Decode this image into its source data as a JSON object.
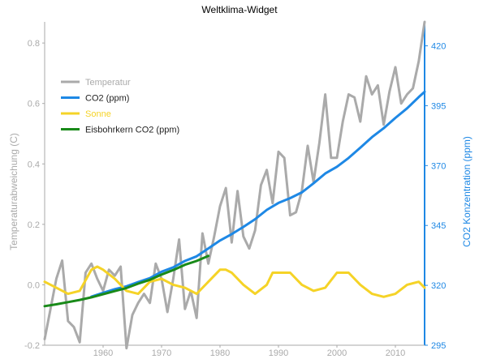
{
  "chart_data": {
    "type": "line",
    "title": "Weltklima-Widget",
    "xlabel": "",
    "ylabel_left": "Temperaturabweichung (C)",
    "ylabel_right": "CO2 Konzentration (ppm)",
    "xlim": [
      1950,
      2015
    ],
    "ylim_left": [
      -0.2,
      0.87
    ],
    "ylim_right": [
      295,
      430
    ],
    "x_ticks": [
      1960,
      1970,
      1980,
      1990,
      2000,
      2010
    ],
    "y_ticks_left": [
      -0.2,
      0.0,
      0.2,
      0.4,
      0.6,
      0.8
    ],
    "y_ticks_right": [
      295,
      320,
      345,
      370,
      395,
      420
    ],
    "legend_position": "top-left",
    "grid": false,
    "colors": {
      "temperature": "#aaaaaa",
      "co2": "#1e88e5",
      "sun": "#f5d327",
      "icecore": "#198a19",
      "left_axis": "#aaaaaa",
      "right_axis": "#1e88e5"
    },
    "series": [
      {
        "name": "Temperatur",
        "axis": "left",
        "x": [
          1950,
          1951,
          1952,
          1953,
          1954,
          1955,
          1956,
          1957,
          1958,
          1959,
          1960,
          1961,
          1962,
          1963,
          1964,
          1965,
          1966,
          1967,
          1968,
          1969,
          1970,
          1971,
          1972,
          1973,
          1974,
          1975,
          1976,
          1977,
          1978,
          1979,
          1980,
          1981,
          1982,
          1983,
          1984,
          1985,
          1986,
          1987,
          1988,
          1989,
          1990,
          1991,
          1992,
          1993,
          1994,
          1995,
          1996,
          1997,
          1998,
          1999,
          2000,
          2001,
          2002,
          2003,
          2004,
          2005,
          2006,
          2007,
          2008,
          2009,
          2010,
          2011,
          2012,
          2013,
          2014,
          2015
        ],
        "values": [
          -0.18,
          -0.08,
          0.02,
          0.08,
          -0.12,
          -0.14,
          -0.19,
          0.04,
          0.07,
          0.02,
          -0.02,
          0.05,
          0.03,
          0.06,
          -0.21,
          -0.1,
          -0.06,
          -0.03,
          -0.06,
          0.07,
          0.02,
          -0.09,
          0.02,
          0.15,
          -0.08,
          -0.02,
          -0.11,
          0.17,
          0.07,
          0.16,
          0.26,
          0.32,
          0.14,
          0.31,
          0.16,
          0.12,
          0.18,
          0.33,
          0.38,
          0.27,
          0.44,
          0.42,
          0.23,
          0.24,
          0.31,
          0.46,
          0.34,
          0.47,
          0.63,
          0.42,
          0.42,
          0.54,
          0.63,
          0.62,
          0.54,
          0.69,
          0.63,
          0.66,
          0.53,
          0.64,
          0.72,
          0.6,
          0.63,
          0.65,
          0.74,
          0.87
        ]
      },
      {
        "name": "CO2 (ppm)",
        "axis": "right",
        "x": [
          1958,
          1960,
          1962,
          1964,
          1966,
          1968,
          1970,
          1972,
          1974,
          1976,
          1978,
          1980,
          1982,
          1984,
          1986,
          1988,
          1990,
          1992,
          1994,
          1996,
          1998,
          2000,
          2002,
          2004,
          2006,
          2008,
          2010,
          2012,
          2014,
          2015
        ],
        "values": [
          315.3,
          316.9,
          318.4,
          319.6,
          321.4,
          323.0,
          325.7,
          327.5,
          330.2,
          332.1,
          335.4,
          338.7,
          341.4,
          344.4,
          347.6,
          351.5,
          354.4,
          356.4,
          358.8,
          362.6,
          366.7,
          369.5,
          373.2,
          377.5,
          381.9,
          385.6,
          389.9,
          393.9,
          398.6,
          400.8
        ]
      },
      {
        "name": "Sonne",
        "axis": "left",
        "x": [
          1950,
          1952,
          1954,
          1956,
          1958,
          1959,
          1960,
          1962,
          1964,
          1966,
          1968,
          1970,
          1972,
          1974,
          1976,
          1978,
          1980,
          1981,
          1982,
          1984,
          1986,
          1988,
          1989,
          1990,
          1992,
          1994,
          1996,
          1998,
          2000,
          2001,
          2002,
          2004,
          2006,
          2008,
          2010,
          2012,
          2014,
          2015
        ],
        "values": [
          0.01,
          -0.01,
          -0.03,
          -0.02,
          0.05,
          0.06,
          0.05,
          0.02,
          -0.02,
          -0.03,
          0.01,
          0.02,
          0.0,
          -0.01,
          -0.03,
          0.01,
          0.05,
          0.05,
          0.04,
          0.0,
          -0.03,
          0.0,
          0.04,
          0.04,
          0.04,
          0.0,
          -0.02,
          -0.01,
          0.04,
          0.04,
          0.04,
          0.0,
          -0.03,
          -0.04,
          -0.03,
          0.0,
          0.01,
          -0.01
        ]
      },
      {
        "name": "Eisbohrkern CO2 (ppm)",
        "axis": "right",
        "x": [
          1950,
          1952,
          1954,
          1956,
          1958,
          1960,
          1962,
          1964,
          1966,
          1968,
          1970,
          1972,
          1974,
          1976,
          1978
        ],
        "values": [
          311.3,
          312.1,
          313.0,
          313.9,
          315.0,
          316.3,
          317.6,
          318.9,
          320.7,
          322.3,
          324.5,
          326.4,
          328.6,
          330.2,
          332.3
        ]
      }
    ]
  }
}
